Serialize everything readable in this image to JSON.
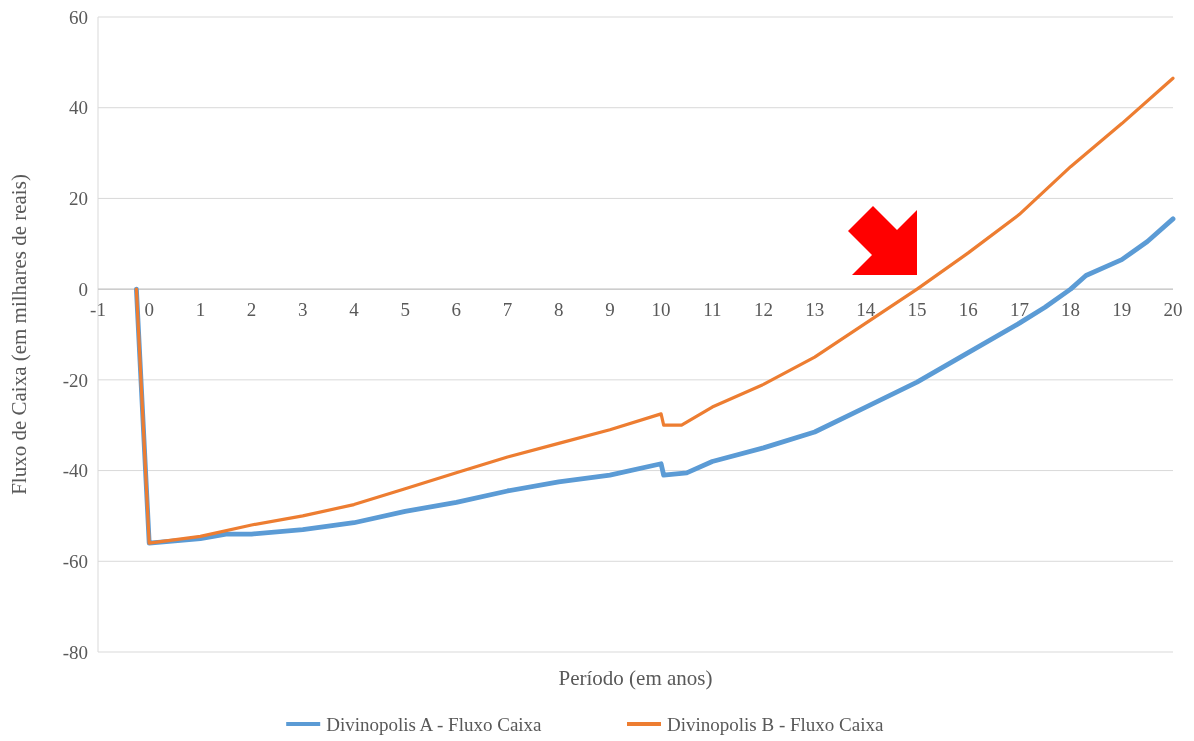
{
  "chart_data": {
    "type": "line",
    "xlabel": "Período (em anos)",
    "ylabel": "Fluxo de Caixa (em milhares de reais)",
    "xlim": [
      -1,
      20
    ],
    "xticks": [
      -1,
      0,
      1,
      2,
      3,
      4,
      5,
      6,
      7,
      8,
      9,
      10,
      11,
      12,
      13,
      14,
      15,
      16,
      17,
      18,
      19,
      20
    ],
    "ylim": [
      -80,
      60
    ],
    "yticks": [
      -80,
      -60,
      -40,
      -20,
      0,
      20,
      40,
      60
    ],
    "grid": "y",
    "legend": "bottom",
    "marker": "none",
    "line_style": "solid",
    "series": [
      {
        "name": "Divinopolis A  - Fluxo Caixa",
        "color": "#5b9bd5",
        "x": [
          -0.25,
          0,
          0.5,
          1,
          1.5,
          2,
          3,
          4,
          5,
          6,
          7,
          8,
          9,
          10,
          10.05,
          10.5,
          11,
          12,
          13,
          14,
          15,
          16,
          17,
          17.5,
          18,
          18.3,
          19,
          19.5,
          20
        ],
        "values": [
          0,
          -56,
          -55.5,
          -55,
          -54,
          -54,
          -53,
          -51.5,
          -49,
          -47,
          -44.5,
          -42.5,
          -41,
          -38.5,
          -41,
          -40.5,
          -38,
          -35,
          -31.5,
          -26,
          -20.5,
          -14,
          -7.5,
          -4,
          0,
          3,
          6.5,
          10.5,
          15.5
        ]
      },
      {
        "name": "Divinopolis B  - Fluxo Caixa",
        "color": "#ed7d31",
        "x": [
          -0.25,
          0,
          1,
          2,
          3,
          4,
          5,
          6,
          7,
          8,
          9,
          10,
          10.05,
          10.4,
          11,
          12,
          13,
          14,
          15,
          16,
          17,
          18,
          19,
          20
        ],
        "values": [
          0,
          -56,
          -54.5,
          -52,
          -50,
          -47.5,
          -44,
          -40.5,
          -37,
          -34,
          -31,
          -27.5,
          -30,
          -30,
          -26,
          -21,
          -15,
          -7.5,
          0,
          8,
          16.5,
          27,
          36.5,
          46.5
        ]
      }
    ]
  }
}
